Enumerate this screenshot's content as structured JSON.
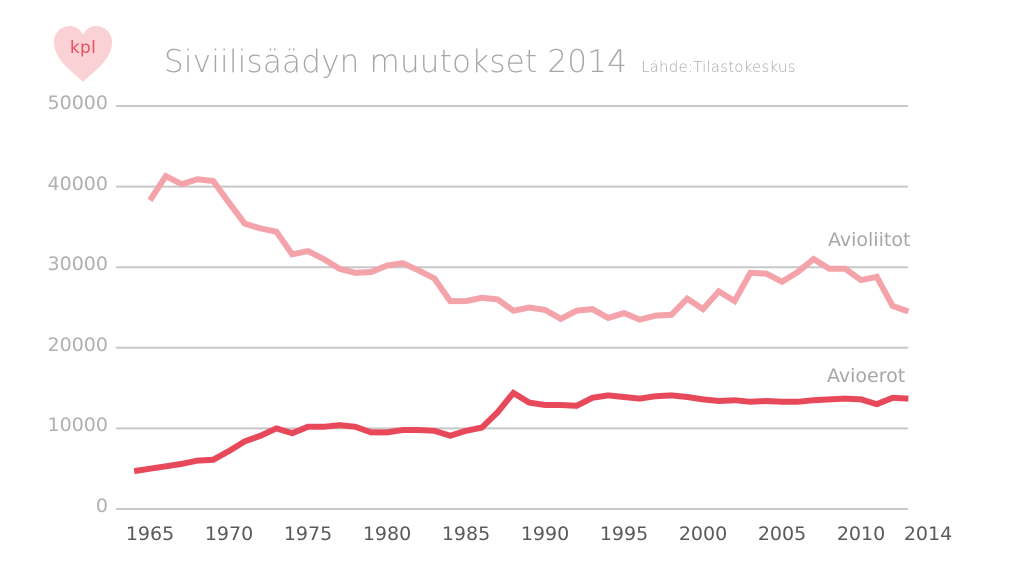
{
  "header": {
    "badge_label": "kpl",
    "title": "Siviilisäädyn muutokset 2014",
    "source": "Lähde:Tilastokeskus"
  },
  "colors": {
    "marriages": "#f5a3ab",
    "divorces": "#e8495a",
    "badge": "#fad2d6",
    "grid": "#c8c8c8",
    "title": "#a6a6a6"
  },
  "chart_data": {
    "type": "line",
    "title": "Siviilisäädyn muutokset 2014",
    "subtitle": "Lähde:Tilastokeskus",
    "xlabel": "",
    "ylabel": "kpl",
    "ylim": [
      0,
      50000
    ],
    "yticks": [
      "0",
      "10000",
      "20000",
      "30000",
      "40000",
      "50000"
    ],
    "xticks": [
      "1965",
      "1970",
      "1975",
      "1980",
      "1985",
      "1990",
      "1995",
      "2000",
      "2005",
      "2010",
      "2014"
    ],
    "grid": true,
    "legend_position": "inline-right",
    "series": [
      {
        "name": "Avioliitot",
        "x": [
          1965,
          1966,
          1967,
          1968,
          1969,
          1970,
          1971,
          1972,
          1973,
          1974,
          1975,
          1976,
          1977,
          1978,
          1979,
          1980,
          1981,
          1982,
          1983,
          1984,
          1985,
          1986,
          1987,
          1988,
          1989,
          1990,
          1991,
          1992,
          1993,
          1994,
          1995,
          1996,
          1997,
          1998,
          1999,
          2000,
          2001,
          2002,
          2003,
          2004,
          2005,
          2006,
          2007,
          2008,
          2009,
          2010,
          2011,
          2012,
          2013
        ],
        "values": [
          38300,
          41300,
          40300,
          40900,
          40700,
          38000,
          35400,
          34800,
          34400,
          31600,
          32000,
          31000,
          29800,
          29300,
          29400,
          30200,
          30500,
          29600,
          28600,
          25800,
          25800,
          26200,
          26000,
          24600,
          25000,
          24700,
          23600,
          24600,
          24800,
          23700,
          24300,
          23500,
          24000,
          24100,
          26100,
          24800,
          27000,
          25800,
          29300,
          29200,
          28200,
          29400,
          31000,
          29800,
          29800,
          28400,
          28800,
          25200,
          24500
        ]
      },
      {
        "name": "Avioerot",
        "x": [
          1964,
          1965,
          1966,
          1967,
          1968,
          1969,
          1970,
          1971,
          1972,
          1973,
          1974,
          1975,
          1976,
          1977,
          1978,
          1979,
          1980,
          1981,
          1982,
          1983,
          1984,
          1985,
          1986,
          1987,
          1988,
          1989,
          1990,
          1991,
          1992,
          1993,
          1994,
          1995,
          1996,
          1997,
          1998,
          1999,
          2000,
          2001,
          2002,
          2003,
          2004,
          2005,
          2006,
          2007,
          2008,
          2009,
          2010,
          2011,
          2012,
          2013
        ],
        "values": [
          4700,
          5000,
          5300,
          5600,
          6000,
          6100,
          7200,
          8400,
          9100,
          10000,
          9400,
          10200,
          10200,
          10400,
          10200,
          9500,
          9500,
          9800,
          9800,
          9700,
          9100,
          9700,
          10100,
          12000,
          14400,
          13200,
          12900,
          12900,
          12800,
          13800,
          14100,
          13900,
          13700,
          14000,
          14100,
          13900,
          13600,
          13400,
          13500,
          13300,
          13400,
          13300,
          13300,
          13500,
          13600,
          13700,
          13600,
          13000,
          13800,
          13700
        ]
      }
    ]
  }
}
